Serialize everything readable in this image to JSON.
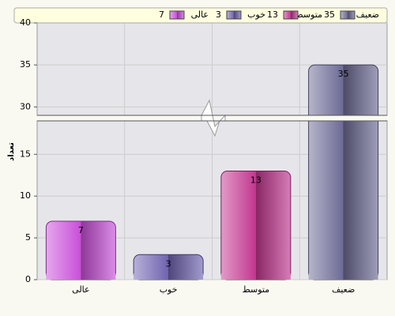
{
  "chart_data": {
    "type": "bar",
    "y_label": "تعداد",
    "categories": [
      "عالی",
      "خوب",
      "متوسط",
      "ضعیف"
    ],
    "values": [
      7,
      3,
      13,
      35
    ],
    "colors": [
      "#c84fd8",
      "#6f63b0",
      "#c2368f",
      "#6c6a94"
    ],
    "ylim": [
      0,
      40
    ],
    "axis_break": [
      19,
      29
    ],
    "yticks": [
      0,
      5,
      10,
      15,
      30,
      35,
      40
    ],
    "grid": true
  }
}
